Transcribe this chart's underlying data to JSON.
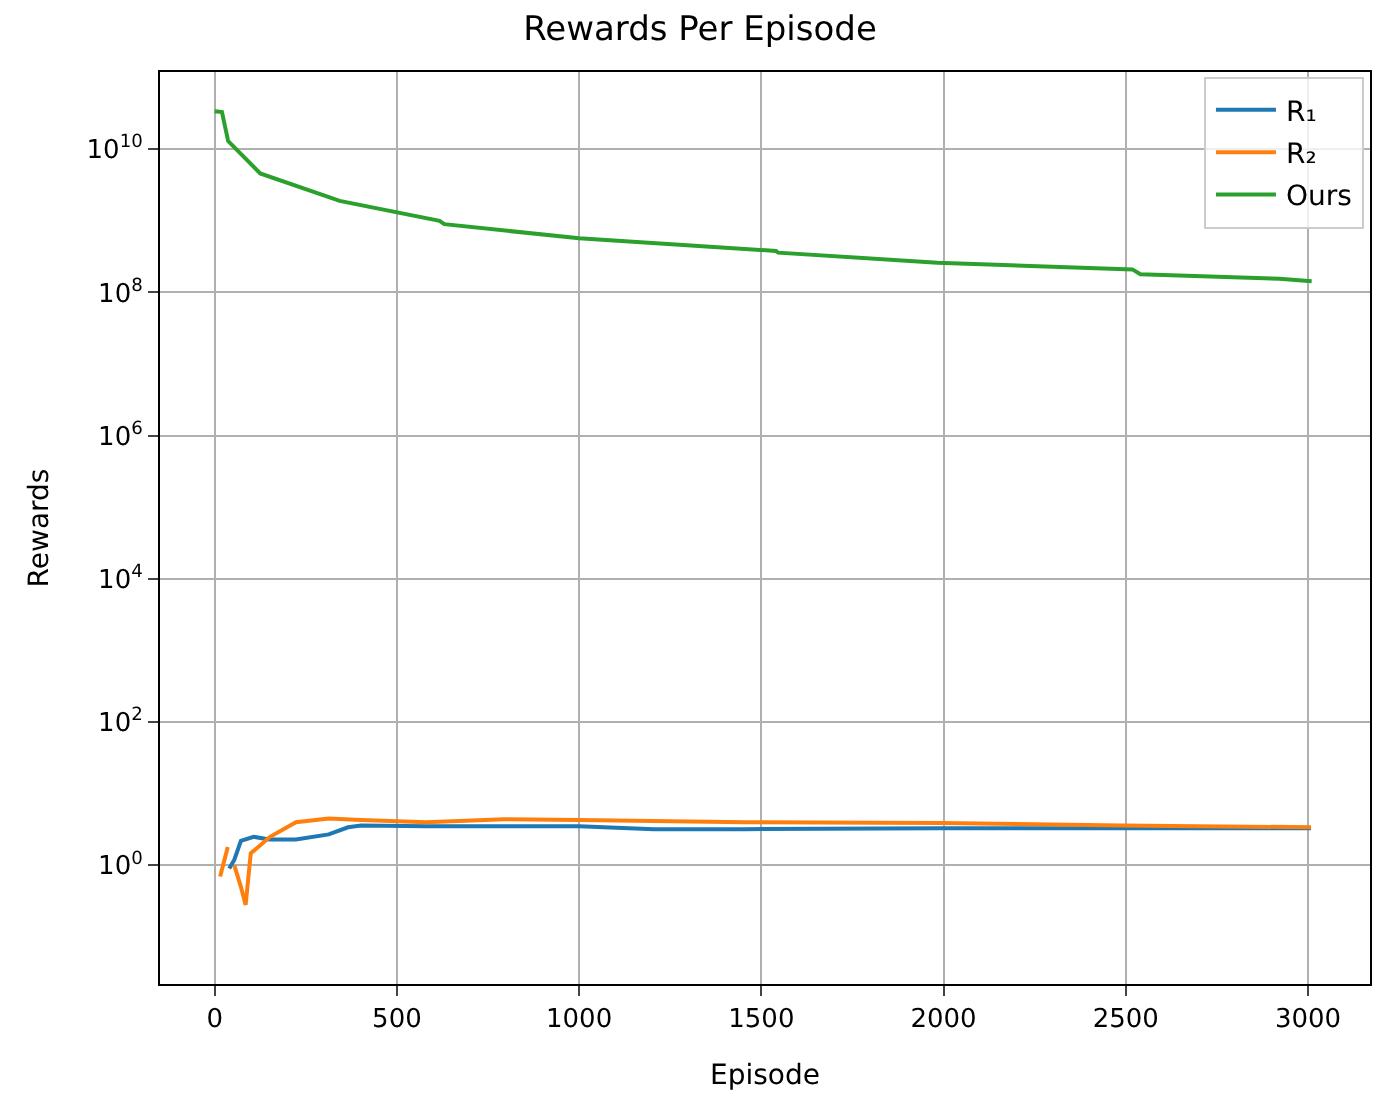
{
  "chart_data": {
    "type": "line",
    "title": "Rewards Per Episode",
    "xlabel": "Episode",
    "ylabel": "Rewards",
    "log": "y",
    "grid": true,
    "legend": "top right",
    "xlim": [
      -150,
      3170
    ],
    "xticks": [
      0,
      500,
      1000,
      1500,
      2000,
      2500,
      3000
    ],
    "ylim": [
      0.022,
      120000000000.0
    ],
    "yticks": [
      {
        "value": 1,
        "label": "10$^{0}$"
      },
      {
        "value": 100,
        "label": "10$^{2}$"
      },
      {
        "value": 10000,
        "label": "10$^{4}$"
      },
      {
        "value": 1000000,
        "label": "10$^{6}$"
      },
      {
        "value": 100000000,
        "label": "10$^{8}$"
      },
      {
        "value": 10000000000,
        "label": "10$^{10}$"
      }
    ],
    "series": [
      {
        "name": "R₁",
        "color": "#1f77b4",
        "x": [
          40,
          54,
          72,
          107,
          150,
          223,
          313,
          366,
          402,
          580,
          1000,
          1205,
          1455,
          1991,
          2489,
          3008
        ],
        "values": [
          0.9,
          1.2,
          2.2,
          2.5,
          2.3,
          2.3,
          2.7,
          3.4,
          3.6,
          3.5,
          3.5,
          3.2,
          3.2,
          3.3,
          3.3,
          3.3
        ]
      },
      {
        "name": "R₂",
        "color": "#ff7f0e",
        "x": [
          15,
          36,
          43,
          54,
          72,
          85,
          99,
          152,
          223,
          313,
          402,
          580,
          795,
          1000,
          1455,
          1991,
          2489,
          3008
        ],
        "values": [
          0.7,
          1.8,
          null,
          1.0,
          0.5,
          0.28,
          1.47,
          2.5,
          4.0,
          4.5,
          4.3,
          4.0,
          4.4,
          4.3,
          4.0,
          3.9,
          3.6,
          3.4
        ]
      },
      {
        "name": "Ours",
        "color": "#2ca02c",
        "x": [
          0,
          20,
          37,
          125,
          343,
          617,
          630,
          1000,
          1540,
          1546,
          1983,
          2518,
          2540,
          2922,
          3010
        ],
        "values": [
          34000000000.0,
          33000000000.0,
          13000000000.0,
          4600000000.0,
          1900000000.0,
          1000000000.0,
          900000000.0,
          570000000.0,
          380000000.0,
          360000000.0,
          260000000.0,
          210000000.0,
          180000000.0,
          155000000.0,
          144000000.0
        ]
      }
    ]
  }
}
